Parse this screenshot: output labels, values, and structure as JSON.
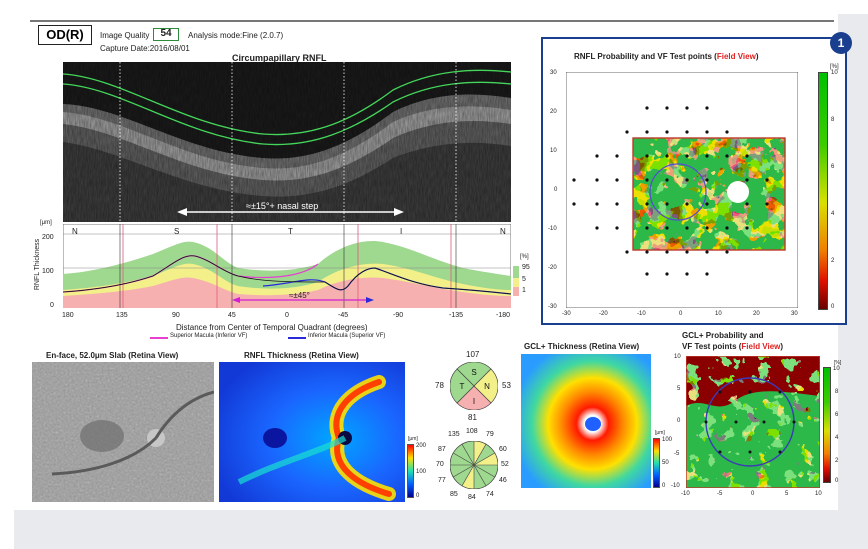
{
  "header": {
    "eye": "OD(R)",
    "image_quality_label": "Image Quality",
    "image_quality_value": "54",
    "analysis_mode": "Analysis mode:Fine (2.0.7)",
    "capture_date": "Capture Date:2016/08/01"
  },
  "oct": {
    "title": "Circumpapillary RNFL",
    "arrow_label": "≈±15°+ nasal step"
  },
  "rnfl_chart": {
    "y_unit": "[μm]",
    "y_axis_label": "RNFL Thickness",
    "y_ticks": [
      "200",
      "100",
      "0"
    ],
    "sector_labels": [
      "N",
      "S",
      "T",
      "I",
      "N"
    ],
    "x_ticks": [
      "180",
      "135",
      "90",
      "45",
      "0",
      "-45",
      "-90",
      "-135",
      "-180"
    ],
    "x_axis_label": "Distance from Center of Temporal Quadrant (degrees)",
    "bracket_label": "≈±45°",
    "legend": [
      "Superior Macula (Inferior VF)",
      "Inferior Macula (Superior VF)"
    ],
    "percent_unit": "[%]",
    "percent_labels": [
      "95",
      "5",
      "1"
    ]
  },
  "fieldview": {
    "badge": "1",
    "title_prefix": "RNFL Probability and VF Test points (",
    "title_highlight": "Field View",
    "title_suffix": ")",
    "y_ticks": [
      "30",
      "20",
      "10",
      "0",
      "-10",
      "-20",
      "-30"
    ],
    "x_ticks": [
      "-30",
      "-20",
      "-10",
      "0",
      "10",
      "20",
      "30"
    ],
    "colorbar_unit": "[%]",
    "colorbar_ticks": [
      "10",
      "8",
      "6",
      "4",
      "2",
      "0"
    ]
  },
  "enface": {
    "title": "En-face, 52.0μm Slab (Retina View)"
  },
  "thickness_map": {
    "title": "RNFL Thickness (Retina View)",
    "unit": "[μm]",
    "ticks": [
      "200",
      "100",
      "0"
    ]
  },
  "quadrant_chart": {
    "labels": [
      "S",
      "T",
      "N",
      "I"
    ],
    "values": [
      "107",
      "78",
      "53",
      "81"
    ]
  },
  "clock_chart": {
    "values": [
      "135",
      "108",
      "79",
      "87",
      "60",
      "70",
      "52",
      "77",
      "46",
      "85",
      "84",
      "74"
    ]
  },
  "gcl_thickness": {
    "title": "GCL+ Thickness (Retina View)",
    "unit": "[μm]",
    "ticks": [
      "100",
      "50",
      "0"
    ]
  },
  "gcl_prob": {
    "title_line1": "GCL+ Probability and",
    "title_prefix": "VF Test points (",
    "title_highlight": "Field View",
    "title_suffix": ")",
    "y_ticks": [
      "10",
      "5",
      "0",
      "-5",
      "-10"
    ],
    "x_ticks": [
      "-10",
      "-5",
      "0",
      "5",
      "10"
    ],
    "colorbar_unit": "[%]",
    "colorbar_ticks": [
      "10",
      "8",
      "6",
      "4",
      "2",
      "0"
    ]
  },
  "colors": {
    "highlight_red": "#e02020",
    "frame_blue": "#1a3f8f",
    "band_green": "#9fd88f",
    "band_yellow": "#f3f08a",
    "band_red": "#f6b0b0",
    "seg_green": "#2fb64a",
    "seg_yellow": "#f4ec5c",
    "seg_red": "#f08080"
  }
}
